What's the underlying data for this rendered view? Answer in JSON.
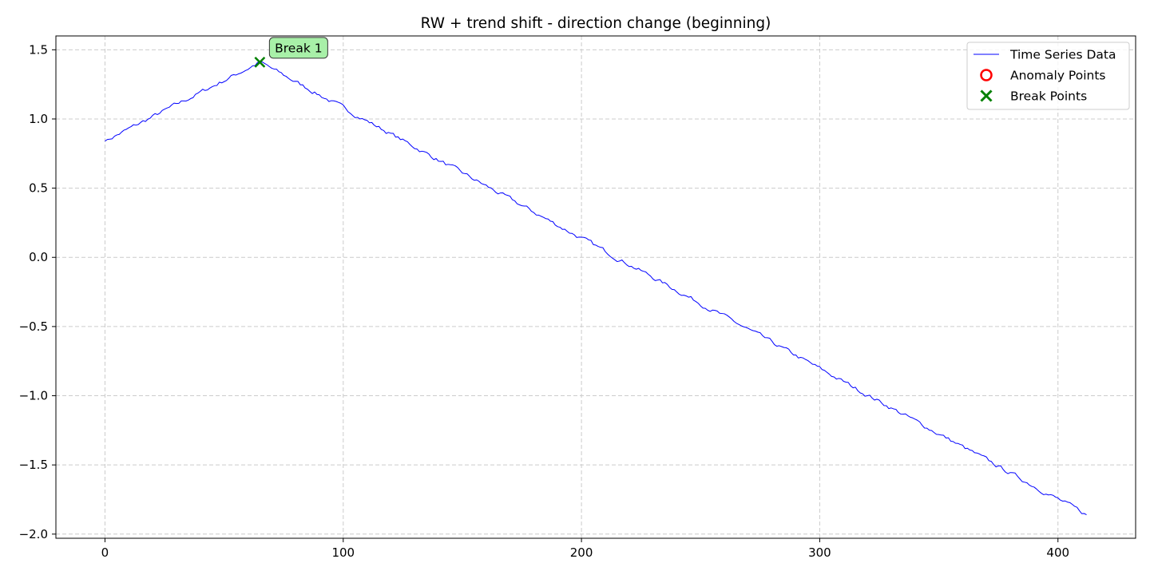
{
  "chart_data": {
    "type": "line",
    "title": "RW + trend shift - direction change (beginning)",
    "xlabel": "",
    "ylabel": "",
    "xlim": [
      -20.6,
      432.6
    ],
    "ylim": [
      -2.03,
      1.6
    ],
    "x_ticks": [
      0,
      100,
      200,
      300,
      400
    ],
    "x_tick_labels": [
      "0",
      "100",
      "200",
      "300",
      "400"
    ],
    "y_ticks": [
      1.5,
      1.0,
      0.5,
      0.0,
      -0.5,
      -1.0,
      -1.5,
      -2.0
    ],
    "y_tick_labels": [
      "1.5",
      "1.0",
      "0.5",
      "0.0",
      "−0.5",
      "−1.0",
      "−1.5",
      "−2.0"
    ],
    "grid": true,
    "legend_position": "top-right",
    "series": [
      {
        "name": "Time Series Data",
        "kind": "line",
        "color": "#0000ff",
        "start": 0,
        "end": 412,
        "shape": {
          "start_value": 0.84,
          "break_index": 65,
          "break_value": 1.41,
          "end_value": -1.86,
          "noise": 0.012
        }
      },
      {
        "name": "Anomaly Points",
        "kind": "marker-circle",
        "color": "#ff0000",
        "points": []
      },
      {
        "name": "Break Points",
        "kind": "marker-x",
        "color": "#008000",
        "points": [
          {
            "x": 65,
            "y": 1.41
          }
        ]
      }
    ],
    "annotations": [
      {
        "text": "Break 1",
        "x": 65,
        "y": 1.41,
        "background": "#a8f0a8"
      }
    ]
  }
}
